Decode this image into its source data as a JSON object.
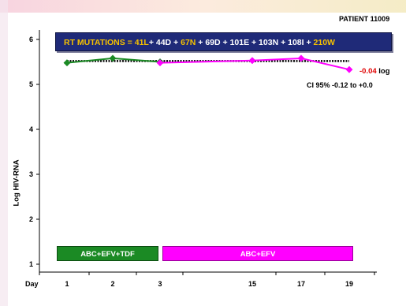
{
  "header": {
    "patient_label": "PATIENT 11009"
  },
  "mutations_banner": {
    "segments": [
      {
        "text": "RT MUTATIONS = 41L",
        "highlight": true
      },
      {
        "text": "+ 44D + ",
        "highlight": false
      },
      {
        "text": "67N",
        "highlight": true
      },
      {
        "text": " + 69D + 101E + 103N + 108I + ",
        "highlight": false
      },
      {
        "text": "210W",
        "highlight": true
      }
    ]
  },
  "annotations": {
    "delta_value": "-0.04",
    "delta_unit": " log",
    "ci_text": "CI 95% -0.12  to +0.0"
  },
  "regimens": {
    "first": "ABC+EFV+TDF",
    "second": "ABC+EFV"
  },
  "colors": {
    "series_green": "#1b8a24",
    "series_magenta": "#ff00ff",
    "trend": "#000000",
    "banner_bg": "#1f2a78",
    "banner_highlight": "#f5c100",
    "delta_red": "#e00000"
  },
  "chart_data": {
    "type": "line",
    "title": "",
    "xlabel": "Day",
    "ylabel": "Log HIV-RNA",
    "x_ticks": [
      "1",
      "2",
      "3",
      "15",
      "17",
      "19"
    ],
    "ylim": [
      1,
      6
    ],
    "y_ticks": [
      "1",
      "2",
      "3",
      "4",
      "5",
      "6"
    ],
    "grid": false,
    "series": [
      {
        "color": "#1b8a24",
        "x": [
          "1",
          "2",
          "3"
        ],
        "values": [
          5.48,
          5.58,
          5.5
        ]
      },
      {
        "color": "#ff00ff",
        "x": [
          "3",
          "15",
          "17",
          "19"
        ],
        "values": [
          5.48,
          5.53,
          5.58,
          5.33
        ]
      }
    ],
    "trend": {
      "style": "dotted",
      "x": [
        "1",
        "19"
      ],
      "values": [
        5.52,
        5.52
      ]
    }
  }
}
